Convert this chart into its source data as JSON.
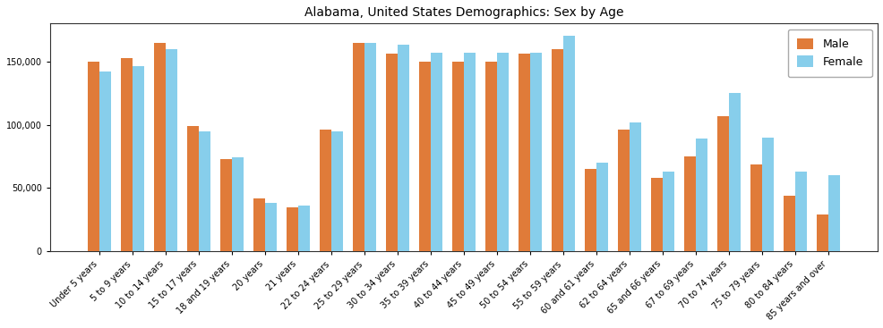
{
  "title": "Alabama, United States Demographics: Sex by Age",
  "categories": [
    "Under 5 years",
    "5 to 9 years",
    "10 to 14 years",
    "15 to 17 years",
    "18 and 19 years",
    "20 years",
    "21 years",
    "22 to 24 years",
    "25 to 29 years",
    "30 to 34 years",
    "35 to 39 years",
    "40 to 44 years",
    "45 to 49 years",
    "50 to 54 years",
    "55 to 59 years",
    "60 and 61 years",
    "62 to 64 years",
    "65 and 66 years",
    "67 to 69 years",
    "70 to 74 years",
    "75 to 79 years",
    "80 to 84 years",
    "85 years and over"
  ],
  "male": [
    150000,
    153000,
    165000,
    99000,
    73000,
    42000,
    35000,
    96000,
    165000,
    156000,
    150000,
    150000,
    150000,
    156000,
    160000,
    65000,
    96000,
    58000,
    75000,
    107000,
    69000,
    44000,
    29000
  ],
  "female": [
    142000,
    146000,
    160000,
    95000,
    74000,
    38000,
    36000,
    95000,
    165000,
    163000,
    157000,
    157000,
    157000,
    157000,
    170000,
    70000,
    102000,
    63000,
    89000,
    125000,
    90000,
    63000,
    60000
  ],
  "male_color": "#E07B39",
  "female_color": "#87CEEB",
  "bar_width": 0.35,
  "ylim": [
    0,
    180000
  ],
  "yticks": [
    0,
    50000,
    100000,
    150000
  ],
  "ytick_labels": [
    "0",
    "50,000",
    "100,000",
    "150,000"
  ],
  "title_fontsize": 10,
  "legend_fontsize": 9,
  "tick_fontsize": 7,
  "background_color": "#ffffff"
}
